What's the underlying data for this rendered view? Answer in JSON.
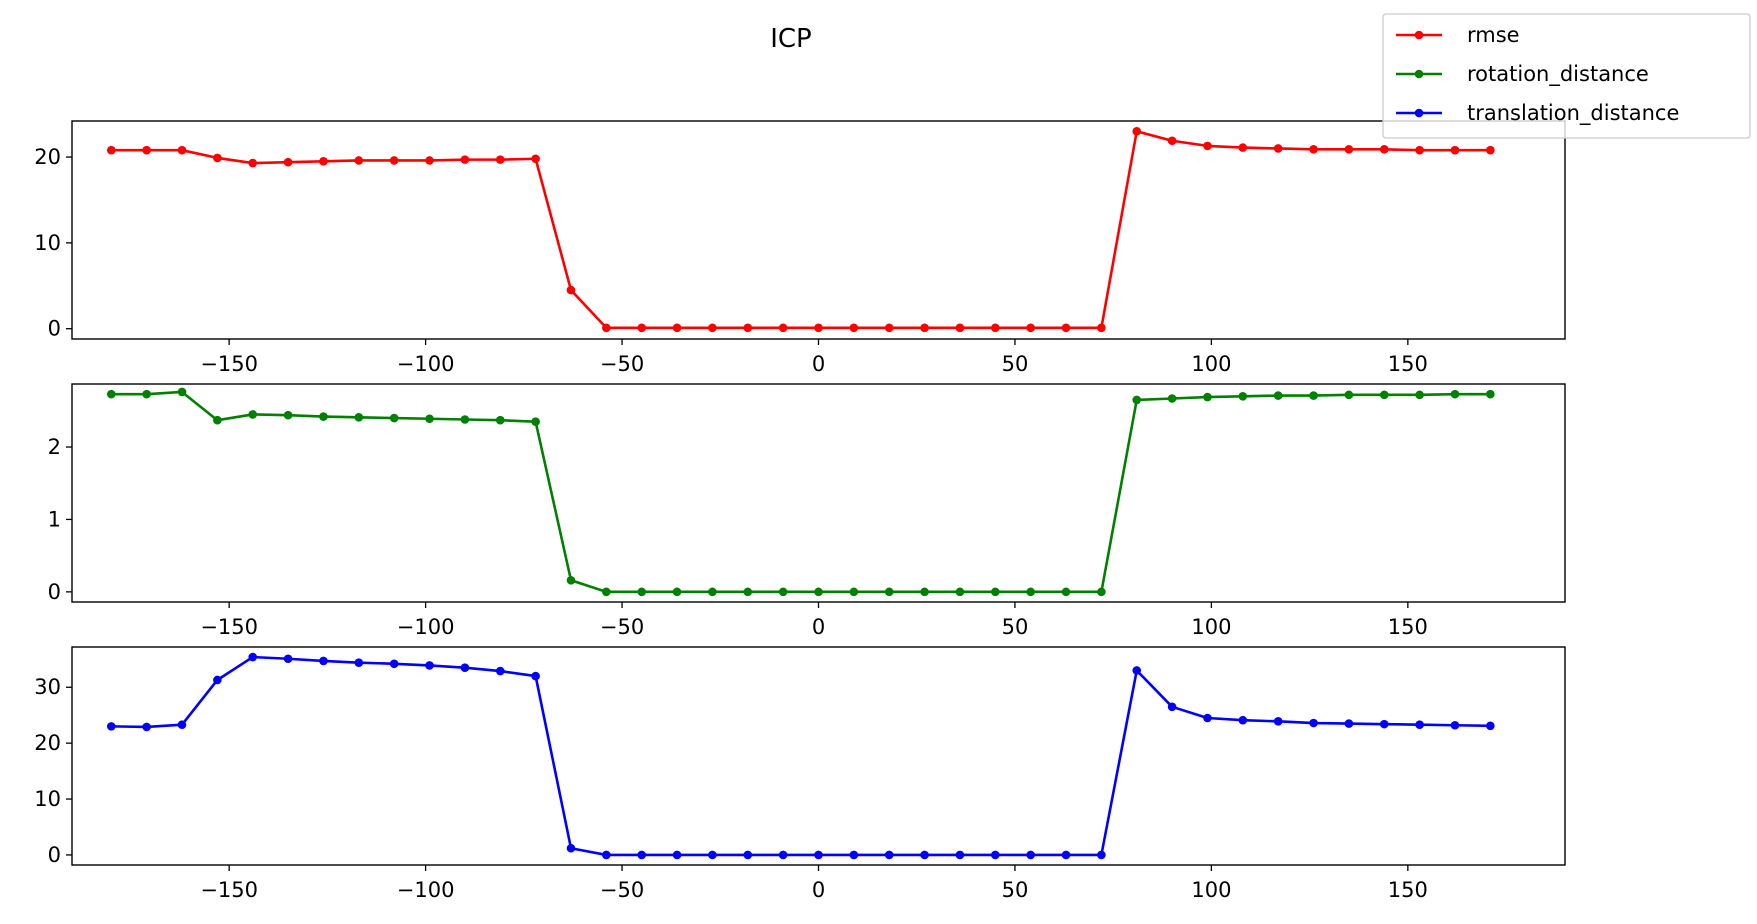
{
  "figure": {
    "title": "ICP"
  },
  "legend": {
    "placement": "top-right",
    "entries": [
      "rmse",
      "rotation_distance",
      "translation_distance"
    ]
  },
  "colors": {
    "rmse": "#ff0000",
    "rotation_distance": "#008000",
    "translation_distance": "#0000ff"
  },
  "chart_data": [
    {
      "type": "line",
      "title": "ICP",
      "series": [
        {
          "name": "rmse",
          "color": "#ff0000",
          "x": [
            -180,
            -171,
            -162,
            -153,
            -144,
            -135,
            -126,
            -117,
            -108,
            -99,
            -90,
            -81,
            -72,
            -63,
            -54,
            -45,
            -36,
            -27,
            -18,
            -9,
            0,
            9,
            18,
            27,
            36,
            45,
            54,
            63,
            72,
            81,
            90,
            99,
            108,
            117,
            126,
            135,
            144,
            153,
            162,
            171
          ],
          "y": [
            20.8,
            20.8,
            20.8,
            19.9,
            19.3,
            19.4,
            19.5,
            19.6,
            19.6,
            19.6,
            19.7,
            19.7,
            19.8,
            4.5,
            0.1,
            0.1,
            0.1,
            0.1,
            0.1,
            0.1,
            0.1,
            0.1,
            0.1,
            0.1,
            0.1,
            0.1,
            0.1,
            0.1,
            0.1,
            23.0,
            21.9,
            21.3,
            21.1,
            21.0,
            20.9,
            20.9,
            20.9,
            20.8,
            20.8,
            20.8
          ]
        }
      ],
      "xlim": [
        -190,
        190
      ],
      "ylim": [
        -1.2,
        24.2
      ],
      "xticks": [
        -150,
        -100,
        -50,
        0,
        50,
        100,
        150
      ],
      "xtick_labels": [
        "−150",
        "−100",
        "−50",
        "0",
        "50",
        "100",
        "150"
      ],
      "yticks": [
        0,
        10,
        20
      ],
      "ytick_labels": [
        "0",
        "10",
        "20"
      ],
      "grid": false
    },
    {
      "type": "line",
      "series": [
        {
          "name": "rotation_distance",
          "color": "#008000",
          "x": [
            -180,
            -171,
            -162,
            -153,
            -144,
            -135,
            -126,
            -117,
            -108,
            -99,
            -90,
            -81,
            -72,
            -63,
            -54,
            -45,
            -36,
            -27,
            -18,
            -9,
            0,
            9,
            18,
            27,
            36,
            45,
            54,
            63,
            72,
            81,
            90,
            99,
            108,
            117,
            126,
            135,
            144,
            153,
            162,
            171
          ],
          "y": [
            2.73,
            2.73,
            2.76,
            2.37,
            2.45,
            2.44,
            2.42,
            2.41,
            2.4,
            2.39,
            2.38,
            2.37,
            2.35,
            0.16,
            0.0,
            0.0,
            0.0,
            0.0,
            0.0,
            0.0,
            0.0,
            0.0,
            0.0,
            0.0,
            0.0,
            0.0,
            0.0,
            0.0,
            0.0,
            2.65,
            2.67,
            2.69,
            2.7,
            2.71,
            2.71,
            2.72,
            2.72,
            2.72,
            2.73,
            2.73
          ]
        }
      ],
      "xlim": [
        -190,
        190
      ],
      "ylim": [
        -0.14,
        2.87
      ],
      "xticks": [
        -150,
        -100,
        -50,
        0,
        50,
        100,
        150
      ],
      "xtick_labels": [
        "−150",
        "−100",
        "−50",
        "0",
        "50",
        "100",
        "150"
      ],
      "yticks": [
        0,
        1,
        2
      ],
      "ytick_labels": [
        "0",
        "1",
        "2"
      ],
      "grid": false
    },
    {
      "type": "line",
      "series": [
        {
          "name": "translation_distance",
          "color": "#0000ff",
          "x": [
            -180,
            -171,
            -162,
            -153,
            -144,
            -135,
            -126,
            -117,
            -108,
            -99,
            -90,
            -81,
            -72,
            -63,
            -54,
            -45,
            -36,
            -27,
            -18,
            -9,
            0,
            9,
            18,
            27,
            36,
            45,
            54,
            63,
            72,
            81,
            90,
            99,
            108,
            117,
            126,
            135,
            144,
            153,
            162,
            171
          ],
          "y": [
            23.0,
            22.9,
            23.3,
            31.3,
            35.4,
            35.1,
            34.7,
            34.4,
            34.2,
            33.9,
            33.5,
            32.9,
            32.0,
            1.2,
            0.0,
            0.0,
            0.0,
            0.0,
            0.0,
            0.0,
            0.0,
            0.0,
            0.0,
            0.0,
            0.0,
            0.0,
            0.0,
            0.0,
            0.0,
            33.0,
            26.5,
            24.5,
            24.1,
            23.9,
            23.6,
            23.5,
            23.4,
            23.3,
            23.2,
            23.1
          ]
        }
      ],
      "xlim": [
        -190,
        190
      ],
      "ylim": [
        -1.8,
        37.2
      ],
      "xticks": [
        -150,
        -100,
        -50,
        0,
        50,
        100,
        150
      ],
      "xtick_labels": [
        "−150",
        "−100",
        "−50",
        "0",
        "50",
        "100",
        "150"
      ],
      "yticks": [
        0,
        10,
        20,
        30
      ],
      "ytick_labels": [
        "0",
        "10",
        "20",
        "30"
      ],
      "grid": false
    }
  ]
}
